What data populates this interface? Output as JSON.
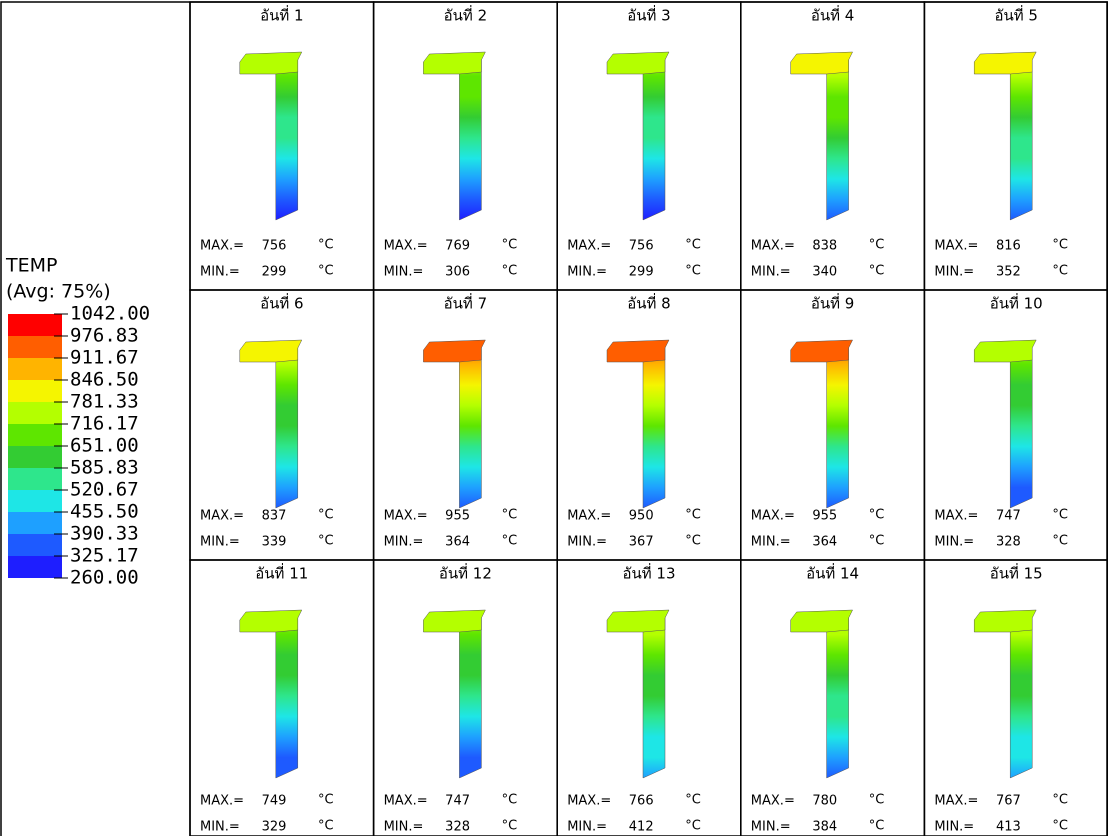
{
  "legend": {
    "title": "TEMP",
    "subtitle": "(Avg: 75%)",
    "levels": [
      "1042.00",
      "976.83",
      "911.67",
      "846.50",
      "781.33",
      "716.17",
      "651.00",
      "585.83",
      "520.67",
      "455.50",
      "390.33",
      "325.17",
      "260.00"
    ]
  },
  "labels": {
    "max": "MAX.=",
    "min": "MIN.=",
    "unit": "°C"
  },
  "cells": [
    {
      "title": "อันที่ 1",
      "max": 756,
      "min": 299
    },
    {
      "title": "อันที่ 2",
      "max": 769,
      "min": 306
    },
    {
      "title": "อันที่ 3",
      "max": 756,
      "min": 299
    },
    {
      "title": "อันที่ 4",
      "max": 838,
      "min": 340
    },
    {
      "title": "อันที่ 5",
      "max": 816,
      "min": 352
    },
    {
      "title": "อันที่ 6",
      "max": 837,
      "min": 339
    },
    {
      "title": "อันที่ 7",
      "max": 955,
      "min": 364
    },
    {
      "title": "อันที่ 8",
      "max": 950,
      "min": 367
    },
    {
      "title": "อันที่ 9",
      "max": 955,
      "min": 364
    },
    {
      "title": "อันที่ 10",
      "max": 747,
      "min": 328
    },
    {
      "title": "อันที่ 11",
      "max": 749,
      "min": 329
    },
    {
      "title": "อันที่ 12",
      "max": 747,
      "min": 328
    },
    {
      "title": "อันที่ 13",
      "max": 766,
      "min": 412
    },
    {
      "title": "อันที่ 14",
      "max": 780,
      "min": 384
    },
    {
      "title": "อันที่ 15",
      "max": 767,
      "min": 413
    }
  ]
}
